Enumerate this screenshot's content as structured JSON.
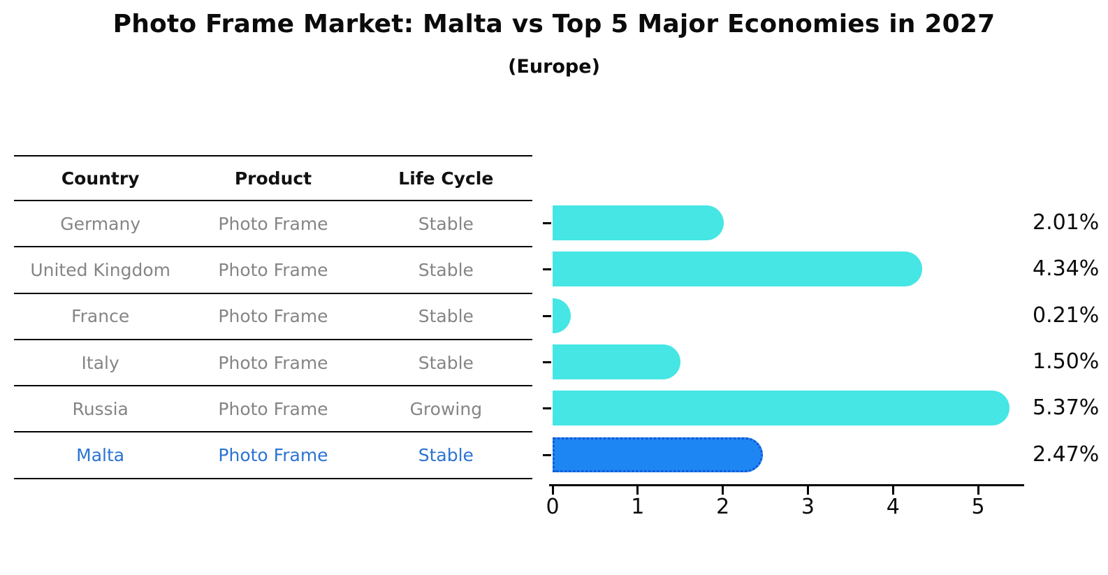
{
  "title": "Photo Frame Market: Malta vs Top 5 Major Economies in 2027",
  "subtitle": "(Europe)",
  "table": {
    "headers": [
      "Country",
      "Product",
      "Life Cycle"
    ],
    "rows": [
      {
        "country": "Germany",
        "product": "Photo Frame",
        "life_cycle": "Stable",
        "highlight": false
      },
      {
        "country": "United Kingdom",
        "product": "Photo Frame",
        "life_cycle": "Stable",
        "highlight": false
      },
      {
        "country": "France",
        "product": "Photo Frame",
        "life_cycle": "Stable",
        "highlight": false
      },
      {
        "country": "Italy",
        "product": "Photo Frame",
        "life_cycle": "Stable",
        "highlight": false
      },
      {
        "country": "Russia",
        "product": "Photo Frame",
        "life_cycle": "Growing",
        "highlight": false
      },
      {
        "country": "Malta",
        "product": "Photo Frame",
        "life_cycle": "Stable",
        "highlight": true
      }
    ]
  },
  "chart_data": {
    "type": "bar",
    "orientation": "horizontal",
    "title": "Photo Frame Market: Malta vs Top 5 Major Economies in 2027 (Europe)",
    "categories": [
      "Germany",
      "United Kingdom",
      "France",
      "Italy",
      "Russia",
      "Malta"
    ],
    "values": [
      2.01,
      4.34,
      0.21,
      1.5,
      5.37,
      2.47
    ],
    "value_labels": [
      "2.01%",
      "4.34%",
      "0.21%",
      "1.50%",
      "5.37%",
      "2.47%"
    ],
    "xlabel": "",
    "ylabel": "",
    "xlim": [
      0,
      5.5
    ],
    "x_ticks": [
      0,
      1,
      2,
      3,
      4,
      5
    ],
    "grid": false,
    "legend": false,
    "bar_color": "#45e6e4",
    "highlight_index": 5,
    "highlight_fill": "#1e86f2",
    "highlight_border": "#1256d8"
  },
  "colors": {
    "row_text": "#858585",
    "highlight_text": "#2b74d2",
    "header_text": "#111111",
    "axis": "#000000",
    "background": "#ffffff"
  }
}
